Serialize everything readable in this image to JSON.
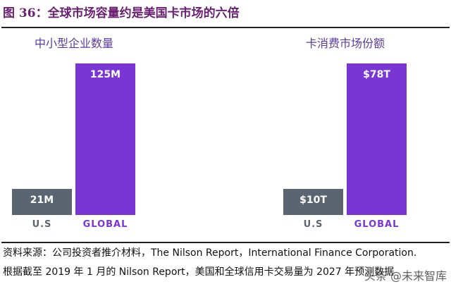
{
  "figure_title": "图 36：全球市场容量约是美国卡市场的六倍",
  "chart_data": [
    {
      "type": "bar",
      "title": "中小型企业数量",
      "categories": [
        "U.S",
        "GLOBAL"
      ],
      "values": [
        21,
        125
      ],
      "data_labels": [
        "21M",
        "125M"
      ],
      "unit": "M",
      "colors": [
        "#5b6571",
        "#7a35d5"
      ]
    },
    {
      "type": "bar",
      "title": "卡消费市场份额",
      "categories": [
        "U.S",
        "GLOBAL"
      ],
      "values": [
        10,
        78
      ],
      "data_labels": [
        "$10T",
        "$78T"
      ],
      "unit": "T",
      "colors": [
        "#5b6571",
        "#7a35d5"
      ]
    }
  ],
  "source_line1": "资料来源：公司投资者推介材料，The Nilson Report，International Finance Corporation.",
  "source_line2": "根据截至 2019 年 1 月的 Nilson Report，美国和全球信用卡交易量为 2027 年预测数据",
  "watermark": "头条 @未来智库",
  "label_colors": {
    "us": "#5b6571",
    "global": "#7a35d5"
  }
}
